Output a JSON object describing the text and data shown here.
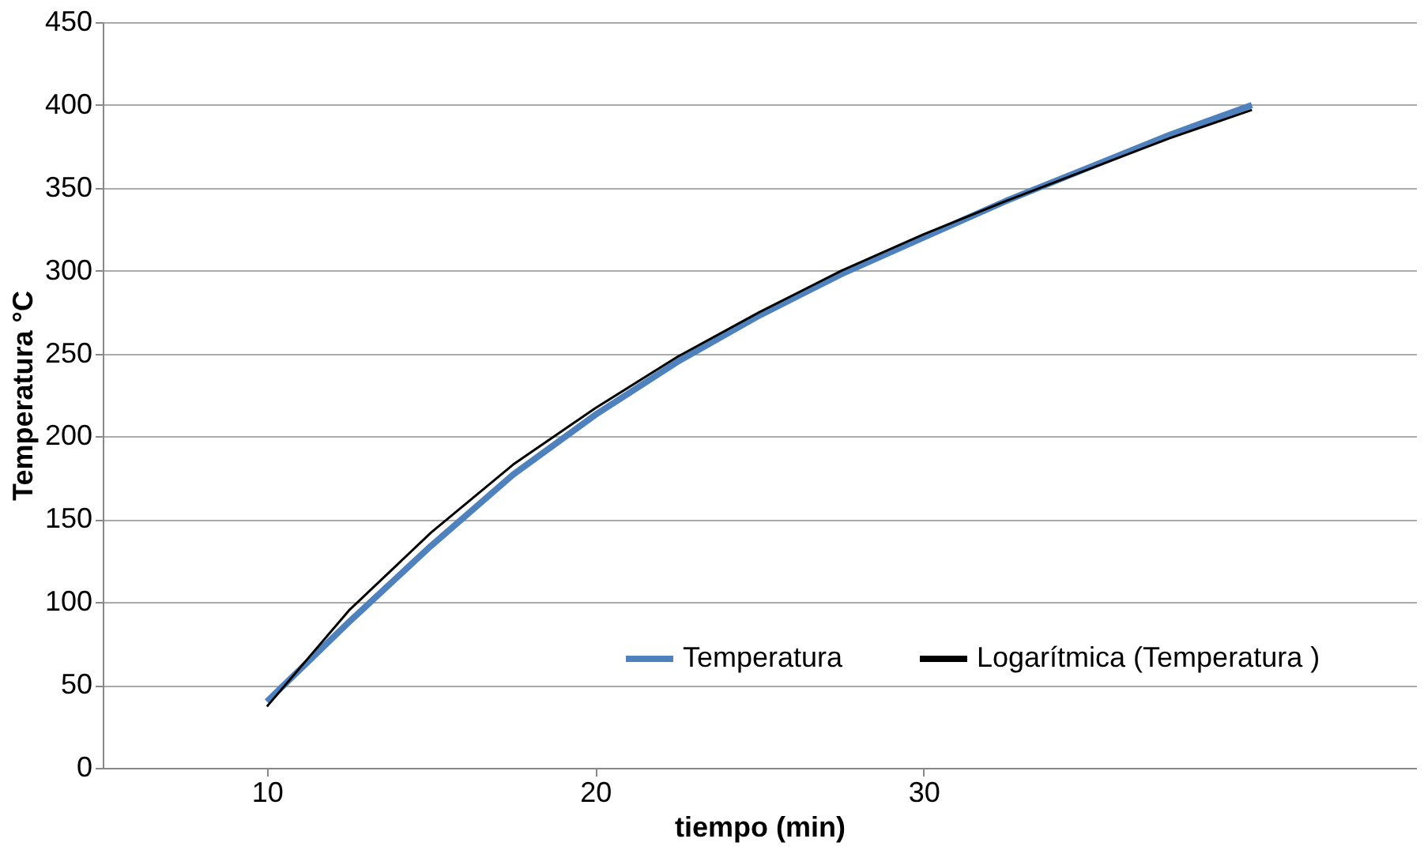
{
  "chart_data": {
    "type": "line",
    "xlabel": "tiempo (min)",
    "ylabel": "Temperatura °C",
    "x": [
      10,
      12.5,
      15,
      17.5,
      20,
      22.5,
      25,
      27.5,
      30,
      32.5,
      35,
      37.5,
      40
    ],
    "series": [
      {
        "name": "Temperatura",
        "color": "#4f81bd",
        "values": [
          40,
          88,
          134,
          177,
          213,
          245,
          273,
          298,
          320,
          342,
          362,
          382,
          400
        ]
      },
      {
        "name": "Logarítmica (Temperatura )",
        "color": "#000000",
        "values": [
          37,
          95,
          142,
          183,
          217,
          248,
          275,
          300,
          322,
          342,
          361,
          380,
          397
        ]
      }
    ],
    "xlim": [
      5,
      45
    ],
    "xticks": [
      10,
      20,
      30
    ],
    "ylim": [
      0,
      450
    ],
    "yticks": [
      0,
      50,
      100,
      150,
      200,
      250,
      300,
      350,
      400,
      450
    ],
    "grid": "y",
    "legend": "bottom right",
    "marker": "none",
    "line_style": "solid"
  }
}
